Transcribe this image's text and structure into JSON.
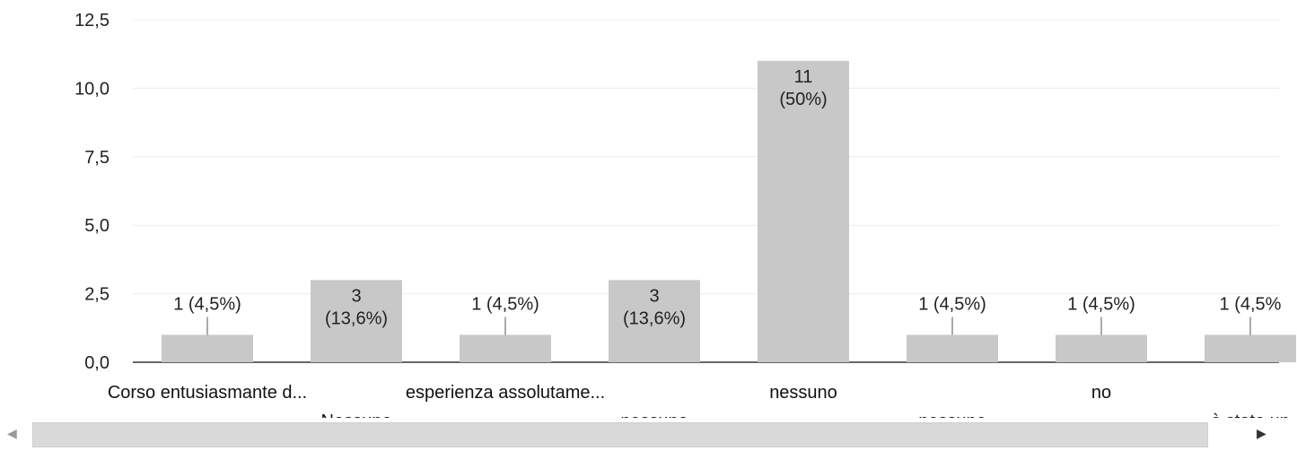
{
  "chart_data": {
    "type": "bar",
    "title": "",
    "xlabel": "",
    "ylabel": "",
    "ylim": [
      0,
      12.5
    ],
    "y_ticks": [
      "0,0",
      "2,5",
      "5,0",
      "7,5",
      "10,0",
      "12,5"
    ],
    "y_tick_values": [
      0,
      2.5,
      5,
      7.5,
      10,
      12.5
    ],
    "grid": true,
    "legend": "none",
    "bar_color": "#c8c8c8",
    "categories": [
      "Corso entusiasmante d...",
      "Nessuno",
      "esperienza assolutame...",
      "nessuna",
      "nessuno",
      "nessuno",
      "no",
      "è stato un"
    ],
    "values": [
      1,
      3,
      1,
      3,
      11,
      1,
      1,
      1
    ],
    "data_labels": [
      "1 (4,5%)",
      "3\n(13,6%)",
      "1 (4,5%)",
      "3\n(13,6%)",
      "11\n(50%)",
      "1 (4,5%)",
      "1 (4,5%)",
      "1 (4,5%"
    ]
  },
  "scrollbar": {
    "left_arrow_icon": "triangle-left-icon",
    "right_arrow_icon": "triangle-right-icon",
    "left_arrow_glyph": "◀",
    "right_arrow_glyph": "▶"
  }
}
